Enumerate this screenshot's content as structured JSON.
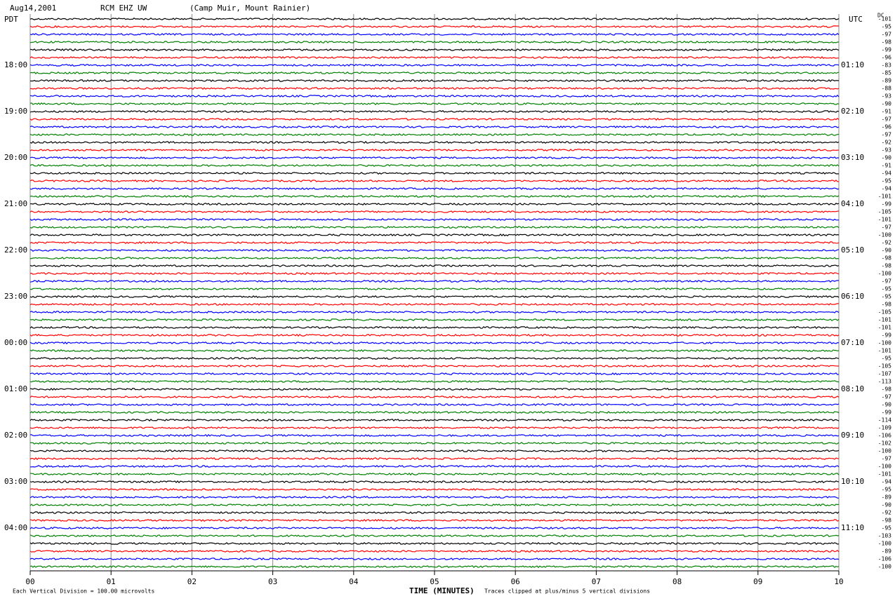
{
  "chart_data": {
    "type": "helicorder",
    "title": "Aug14,2001",
    "station": "RCM EHZ UW",
    "location": "(Camp Muir, Mount Rainier)",
    "left_axis_label": "PDT",
    "right_axis_label": "UTC",
    "dc_label": "DC",
    "hours": [
      {
        "pdt": "18:00",
        "utc": "01:10"
      },
      {
        "pdt": "19:00",
        "utc": "02:10"
      },
      {
        "pdt": "20:00",
        "utc": "03:10"
      },
      {
        "pdt": "21:00",
        "utc": "04:10"
      },
      {
        "pdt": "22:00",
        "utc": "05:10"
      },
      {
        "pdt": "23:00",
        "utc": "06:10"
      },
      {
        "pdt": "00:00",
        "utc": "07:10"
      },
      {
        "pdt": "01:00",
        "utc": "08:10"
      },
      {
        "pdt": "02:00",
        "utc": "09:10"
      },
      {
        "pdt": "03:00",
        "utc": "10:10"
      },
      {
        "pdt": "04:00",
        "utc": "11:10"
      }
    ],
    "dc_offsets": [
      -101,
      -95,
      -97,
      -98,
      -99,
      -96,
      -83,
      -85,
      -89,
      -88,
      -93,
      -90,
      -91,
      -97,
      -96,
      -97,
      -92,
      -93,
      -90,
      -91,
      -94,
      -95,
      -94,
      -101,
      -99,
      -105,
      -101,
      -97,
      -100,
      -92,
      -90,
      -98,
      -98,
      -100,
      -97,
      -95,
      -95,
      -98,
      -105,
      -101,
      -101,
      -99,
      -100,
      -101,
      -95,
      -105,
      -107,
      -113,
      -98,
      -97,
      -90,
      -99,
      -114,
      -109,
      -106,
      -102,
      -100,
      -97,
      -100,
      -101,
      -94,
      -95,
      -89,
      -90,
      -92,
      -98,
      -95,
      -103,
      -100,
      -89,
      -106,
      -100
    ],
    "trace_colors": [
      "#000000",
      "#ff0000",
      "#0000ff",
      "#008000"
    ],
    "xlim": [
      0,
      10
    ],
    "xticks": [
      {
        "value": 0,
        "label": "00"
      },
      {
        "value": 1,
        "label": "01"
      },
      {
        "value": 2,
        "label": "02"
      },
      {
        "value": 3,
        "label": "03"
      },
      {
        "value": 4,
        "label": "04"
      },
      {
        "value": 5,
        "label": "05"
      },
      {
        "value": 6,
        "label": "06"
      },
      {
        "value": 7,
        "label": "07"
      },
      {
        "value": 8,
        "label": "08"
      },
      {
        "value": 9,
        "label": "09"
      },
      {
        "value": 10,
        "label": "10"
      }
    ],
    "xlabel": "TIME (MINUTES)",
    "footnote": "Each Vertical Division =  100.00 microvolts",
    "clip_note": "Traces clipped at plus/minus 5 vertical divisions",
    "grid": true
  }
}
